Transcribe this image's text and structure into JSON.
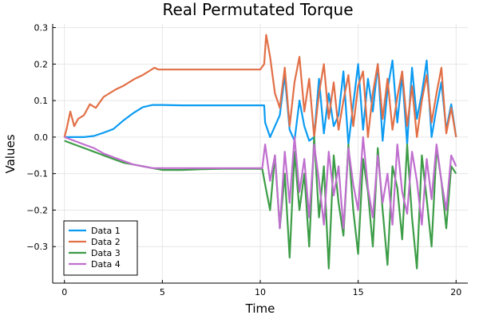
{
  "chart_data": {
    "type": "line",
    "title": "Real Permutated Torque",
    "xlabel": "Time",
    "ylabel": "Values",
    "xlim": [
      -0.6,
      20.6
    ],
    "ylim": [
      -0.4,
      0.31
    ],
    "xticks": [
      0,
      5,
      10,
      15,
      20
    ],
    "xtick_labels": [
      "0",
      "5",
      "10",
      "15",
      "20"
    ],
    "yticks": [
      -0.3,
      -0.2,
      -0.1,
      0.0,
      0.1,
      0.2,
      0.3
    ],
    "ytick_labels": [
      "−0.3",
      "−0.2",
      "−0.1",
      "0.0",
      "0.1",
      "0.2",
      "0.3"
    ],
    "grid": true,
    "legend_position": "bottom-left",
    "series": [
      {
        "name": "Data 1",
        "color": "#0b9bf2",
        "x": [
          0,
          0.5,
          1,
          1.5,
          2,
          2.5,
          3,
          3.5,
          4,
          4.5,
          5,
          6,
          7,
          8,
          9,
          10.2,
          10.25,
          10.5,
          10.75,
          11,
          11.25,
          11.5,
          11.75,
          12,
          12.25,
          12.5,
          12.75,
          13,
          13.25,
          13.5,
          13.75,
          14,
          14.25,
          14.5,
          14.75,
          15,
          15.25,
          15.5,
          15.75,
          16,
          16.25,
          16.5,
          16.75,
          17,
          17.25,
          17.5,
          17.75,
          18,
          18.25,
          18.5,
          18.75,
          19,
          19.25,
          19.5,
          19.75,
          20
        ],
        "values": [
          0.0,
          0.0,
          0.0,
          0.003,
          0.012,
          0.022,
          0.045,
          0.065,
          0.082,
          0.088,
          0.088,
          0.087,
          0.087,
          0.087,
          0.087,
          0.087,
          0.04,
          0.0,
          0.03,
          0.06,
          0.17,
          0.02,
          -0.01,
          0.1,
          0.03,
          -0.01,
          0.0,
          0.16,
          0.01,
          0.12,
          0.03,
          0.06,
          0.18,
          -0.02,
          0.09,
          0.2,
          0.02,
          0.16,
          0.07,
          0.2,
          -0.01,
          0.13,
          0.21,
          0.04,
          0.17,
          -0.02,
          0.19,
          0.05,
          0.12,
          0.21,
          0.0,
          0.08,
          0.15,
          0.02,
          0.09,
          0.0
        ]
      },
      {
        "name": "Data 2",
        "color": "#e26f46",
        "x": [
          0,
          0.1,
          0.3,
          0.5,
          0.7,
          1,
          1.3,
          1.6,
          2,
          2.3,
          2.6,
          3,
          3.3,
          3.6,
          4,
          4.3,
          4.6,
          4.8,
          5,
          6,
          7,
          8,
          9,
          10,
          10.2,
          10.3,
          10.5,
          10.75,
          11,
          11.25,
          11.5,
          11.75,
          12,
          12.25,
          12.5,
          12.75,
          13,
          13.25,
          13.5,
          13.75,
          14,
          14.25,
          14.5,
          14.75,
          15,
          15.25,
          15.5,
          15.75,
          16,
          16.25,
          16.5,
          16.75,
          17,
          17.25,
          17.5,
          17.75,
          18,
          18.25,
          18.5,
          18.75,
          19,
          19.25,
          19.5,
          19.75,
          20
        ],
        "values": [
          0.0,
          0.02,
          0.07,
          0.03,
          0.05,
          0.06,
          0.09,
          0.08,
          0.11,
          0.12,
          0.13,
          0.14,
          0.15,
          0.16,
          0.17,
          0.18,
          0.19,
          0.185,
          0.185,
          0.185,
          0.185,
          0.185,
          0.185,
          0.185,
          0.2,
          0.28,
          0.22,
          0.12,
          0.08,
          0.19,
          0.03,
          0.15,
          0.22,
          0.07,
          0.16,
          0.0,
          0.12,
          0.2,
          0.05,
          0.15,
          0.02,
          0.1,
          0.17,
          0.03,
          0.14,
          0.18,
          0.0,
          0.12,
          0.2,
          0.05,
          0.16,
          0.02,
          0.11,
          0.18,
          0.03,
          0.14,
          0.0,
          0.1,
          0.17,
          0.04,
          0.12,
          0.19,
          0.01,
          0.08,
          0.0
        ]
      },
      {
        "name": "Data 3",
        "color": "#3d9d47",
        "x": [
          0,
          0.5,
          1,
          1.5,
          2,
          2.5,
          3,
          3.5,
          4,
          4.5,
          5,
          6,
          7,
          8,
          9,
          10.1,
          10.25,
          10.5,
          10.75,
          11,
          11.25,
          11.5,
          11.75,
          12,
          12.25,
          12.5,
          12.75,
          13,
          13.25,
          13.5,
          13.75,
          14,
          14.25,
          14.5,
          14.75,
          15,
          15.25,
          15.5,
          15.75,
          16,
          16.25,
          16.5,
          16.75,
          17,
          17.25,
          17.5,
          17.75,
          18,
          18.25,
          18.5,
          18.75,
          19,
          19.25,
          19.5,
          19.75,
          20
        ],
        "values": [
          -0.01,
          -0.02,
          -0.03,
          -0.04,
          -0.05,
          -0.06,
          -0.07,
          -0.075,
          -0.08,
          -0.085,
          -0.09,
          -0.09,
          -0.088,
          -0.087,
          -0.087,
          -0.087,
          -0.13,
          -0.2,
          -0.05,
          -0.25,
          -0.1,
          -0.33,
          -0.04,
          -0.2,
          -0.1,
          -0.3,
          0.0,
          -0.22,
          -0.08,
          -0.36,
          -0.05,
          -0.18,
          -0.27,
          -0.02,
          -0.2,
          -0.32,
          -0.06,
          -0.15,
          -0.3,
          -0.03,
          -0.2,
          -0.35,
          -0.08,
          -0.14,
          -0.28,
          -0.02,
          -0.22,
          -0.36,
          -0.05,
          -0.17,
          -0.3,
          -0.03,
          -0.12,
          -0.25,
          -0.08,
          -0.1
        ]
      },
      {
        "name": "Data 4",
        "color": "#c06fcf",
        "x": [
          0,
          0.5,
          1,
          1.5,
          2,
          2.5,
          3,
          3.5,
          4,
          4.5,
          5,
          6,
          7,
          8,
          9,
          10.1,
          10.25,
          10.5,
          10.75,
          11,
          11.25,
          11.5,
          11.75,
          12,
          12.25,
          12.5,
          12.75,
          13,
          13.25,
          13.5,
          13.75,
          14,
          14.25,
          14.5,
          14.75,
          15,
          15.25,
          15.5,
          15.75,
          16,
          16.25,
          16.5,
          16.75,
          17,
          17.25,
          17.5,
          17.75,
          18,
          18.25,
          18.5,
          18.75,
          19,
          19.25,
          19.5,
          19.75,
          20
        ],
        "values": [
          0.0,
          -0.01,
          -0.02,
          -0.03,
          -0.045,
          -0.055,
          -0.065,
          -0.075,
          -0.08,
          -0.085,
          -0.085,
          -0.085,
          -0.085,
          -0.085,
          -0.085,
          -0.085,
          -0.02,
          -0.12,
          -0.05,
          -0.25,
          -0.04,
          -0.18,
          0.0,
          -0.15,
          -0.06,
          -0.22,
          -0.02,
          -0.12,
          -0.24,
          -0.04,
          -0.16,
          -0.08,
          -0.25,
          -0.03,
          -0.13,
          -0.2,
          0.0,
          -0.14,
          -0.22,
          -0.05,
          -0.18,
          -0.1,
          -0.24,
          -0.02,
          -0.15,
          -0.21,
          -0.04,
          -0.12,
          -0.24,
          -0.06,
          -0.17,
          -0.02,
          -0.12,
          -0.2,
          -0.05,
          -0.08
        ]
      }
    ]
  }
}
